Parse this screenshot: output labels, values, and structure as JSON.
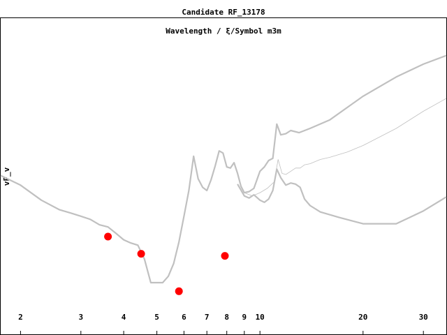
{
  "chart_data": {
    "type": "line",
    "title": "Candidate RF_13178",
    "subtitle": "Wavelength / ξ/Symbol m3m",
    "xlabel": "",
    "ylabel": "vF_v",
    "x_scale": "log",
    "xlim": [
      1.75,
      35
    ],
    "ylim": [
      0,
      1
    ],
    "x_ticks": [
      2,
      3,
      4,
      5,
      6,
      7,
      8,
      9,
      10,
      20,
      30
    ],
    "x_tick_labels": [
      "2",
      "3",
      "4",
      "5",
      "6",
      "7",
      "8",
      "9",
      "10",
      "20",
      "30"
    ],
    "grid": false,
    "legend": "none",
    "colors": {
      "line": "#c0c0c0",
      "point": "#ff0000",
      "text": "#000000",
      "frame": "#000000"
    },
    "series": [
      {
        "role": "upper",
        "stroke_width": 2.2,
        "x": [
          1.75,
          2.0,
          2.3,
          2.6,
          2.8,
          3.0,
          3.2,
          3.4,
          3.6,
          3.8,
          4.0,
          4.2,
          4.4,
          4.6,
          4.8,
          5.0,
          5.2,
          5.4,
          5.6,
          5.8,
          6.0,
          6.2,
          6.4,
          6.6,
          6.8,
          7.0,
          7.2,
          7.4,
          7.6,
          7.8,
          8.0,
          8.2,
          8.4,
          8.6,
          8.8,
          9.0,
          9.3,
          9.6,
          10.0,
          10.3,
          10.6,
          10.9,
          11.2,
          11.5,
          11.9,
          12.3,
          13.0,
          14.0,
          16.0,
          20.0,
          25.0,
          30.0,
          35.0
        ],
        "y": [
          0.5,
          0.455,
          0.385,
          0.34,
          0.325,
          0.31,
          0.295,
          0.27,
          0.26,
          0.23,
          0.2,
          0.185,
          0.175,
          0.11,
          0.0,
          0.0,
          0.0,
          0.03,
          0.09,
          0.19,
          0.31,
          0.43,
          0.59,
          0.485,
          0.445,
          0.43,
          0.48,
          0.545,
          0.615,
          0.605,
          0.54,
          0.535,
          0.56,
          0.51,
          0.45,
          0.42,
          0.425,
          0.44,
          0.52,
          0.54,
          0.57,
          0.58,
          0.74,
          0.69,
          0.695,
          0.71,
          0.7,
          0.72,
          0.76,
          0.87,
          0.96,
          1.02,
          1.06
        ]
      },
      {
        "role": "middle",
        "stroke_width": 0.8,
        "x": [
          9.0,
          9.5,
          10.0,
          10.5,
          11.0,
          11.3,
          11.6,
          11.9,
          12.3,
          12.7,
          13.1,
          13.5,
          14.0,
          14.5,
          15.0,
          16.0,
          18.0,
          20.0,
          25.0,
          30.0,
          35.0
        ],
        "y": [
          0.42,
          0.405,
          0.42,
          0.44,
          0.47,
          0.575,
          0.51,
          0.505,
          0.52,
          0.535,
          0.535,
          0.55,
          0.555,
          0.565,
          0.575,
          0.585,
          0.61,
          0.64,
          0.72,
          0.8,
          0.86
        ]
      },
      {
        "role": "lower",
        "stroke_width": 2.2,
        "x": [
          8.6,
          9.0,
          9.3,
          9.6,
          10.0,
          10.3,
          10.6,
          10.9,
          11.2,
          11.5,
          11.9,
          12.3,
          12.7,
          13.1,
          13.5,
          14.0,
          15.0,
          17.0,
          20.0,
          25.0,
          30.0,
          35.0
        ],
        "y": [
          0.46,
          0.405,
          0.395,
          0.41,
          0.385,
          0.375,
          0.39,
          0.43,
          0.53,
          0.49,
          0.455,
          0.465,
          0.46,
          0.445,
          0.39,
          0.36,
          0.33,
          0.305,
          0.275,
          0.275,
          0.335,
          0.4
        ]
      }
    ],
    "points": [
      {
        "x": 3.6,
        "y": 0.215
      },
      {
        "x": 4.5,
        "y": 0.135
      },
      {
        "x": 5.8,
        "y": -0.04
      },
      {
        "x": 7.9,
        "y": 0.125
      }
    ]
  }
}
